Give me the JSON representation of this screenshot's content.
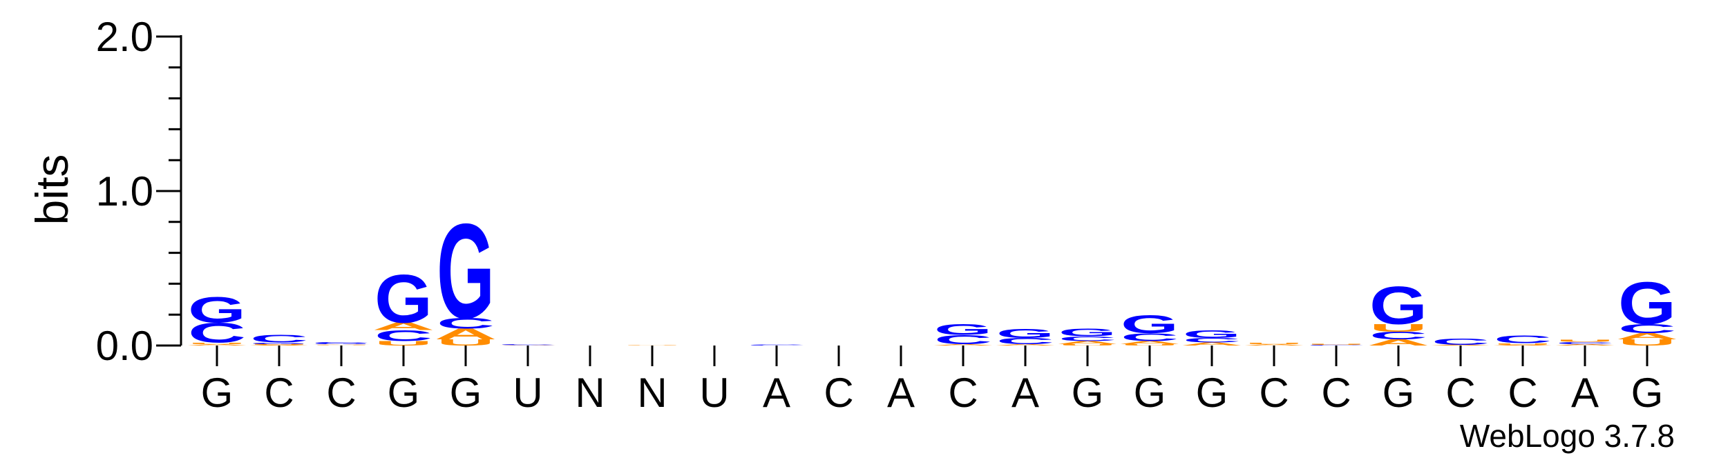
{
  "chart_data": {
    "type": "sequence-logo",
    "ylabel": "bits",
    "ylim": [
      0,
      2.0
    ],
    "yticks": [
      {
        "value": 2.0,
        "label": "2.0"
      },
      {
        "value": 1.0,
        "label": "1.0"
      },
      {
        "value": 0.0,
        "label": "0.0"
      }
    ],
    "y_minor_step": 0.2,
    "x_labels": [
      "G",
      "C",
      "C",
      "G",
      "G",
      "U",
      "N",
      "N",
      "U",
      "A",
      "C",
      "A",
      "C",
      "A",
      "G",
      "G",
      "G",
      "C",
      "C",
      "G",
      "C",
      "C",
      "A",
      "G"
    ],
    "positions": [
      {
        "stack": [
          {
            "letter": "A",
            "bits": 0.01
          },
          {
            "letter": "U",
            "bits": 0.01
          },
          {
            "letter": "C",
            "bits": 0.13
          },
          {
            "letter": "G",
            "bits": 0.17
          }
        ]
      },
      {
        "stack": [
          {
            "letter": "A",
            "bits": 0.005
          },
          {
            "letter": "U",
            "bits": 0.005
          },
          {
            "letter": "G",
            "bits": 0.01
          },
          {
            "letter": "C",
            "bits": 0.05
          }
        ]
      },
      {
        "stack": [
          {
            "letter": "U",
            "bits": 0.004
          },
          {
            "letter": "A",
            "bits": 0.004
          },
          {
            "letter": "G",
            "bits": 0.006
          },
          {
            "letter": "C",
            "bits": 0.01
          }
        ]
      },
      {
        "stack": [
          {
            "letter": "U",
            "bits": 0.03
          },
          {
            "letter": "C",
            "bits": 0.07
          },
          {
            "letter": "A",
            "bits": 0.05
          },
          {
            "letter": "G",
            "bits": 0.32
          }
        ]
      },
      {
        "stack": [
          {
            "letter": "U",
            "bits": 0.04
          },
          {
            "letter": "A",
            "bits": 0.07
          },
          {
            "letter": "C",
            "bits": 0.07
          },
          {
            "letter": "G",
            "bits": 0.63
          }
        ]
      },
      {
        "stack": [
          {
            "letter": "A",
            "bits": 0.003
          },
          {
            "letter": "C",
            "bits": 0.005
          }
        ]
      },
      {
        "stack": []
      },
      {
        "stack": [
          {
            "letter": "U",
            "bits": 0.004
          }
        ]
      },
      {
        "stack": []
      },
      {
        "stack": [
          {
            "letter": "C",
            "bits": 0.005
          }
        ]
      },
      {
        "stack": []
      },
      {
        "stack": []
      },
      {
        "stack": [
          {
            "letter": "A",
            "bits": 0.01
          },
          {
            "letter": "C",
            "bits": 0.06
          },
          {
            "letter": "G",
            "bits": 0.07
          }
        ]
      },
      {
        "stack": [
          {
            "letter": "A",
            "bits": 0.01
          },
          {
            "letter": "C",
            "bits": 0.04
          },
          {
            "letter": "G",
            "bits": 0.06
          }
        ]
      },
      {
        "stack": [
          {
            "letter": "U",
            "bits": 0.01
          },
          {
            "letter": "A",
            "bits": 0.02
          },
          {
            "letter": "C",
            "bits": 0.03
          },
          {
            "letter": "G",
            "bits": 0.05
          }
        ]
      },
      {
        "stack": [
          {
            "letter": "U",
            "bits": 0.01
          },
          {
            "letter": "A",
            "bits": 0.02
          },
          {
            "letter": "C",
            "bits": 0.05
          },
          {
            "letter": "G",
            "bits": 0.12
          }
        ]
      },
      {
        "stack": [
          {
            "letter": "A",
            "bits": 0.02
          },
          {
            "letter": "C",
            "bits": 0.03
          },
          {
            "letter": "G",
            "bits": 0.05
          }
        ]
      },
      {
        "stack": [
          {
            "letter": "A",
            "bits": 0.01
          },
          {
            "letter": "U",
            "bits": 0.01
          }
        ]
      },
      {
        "stack": [
          {
            "letter": "C",
            "bits": 0.005
          },
          {
            "letter": "U",
            "bits": 0.005
          }
        ]
      },
      {
        "stack": [
          {
            "letter": "A",
            "bits": 0.04
          },
          {
            "letter": "C",
            "bits": 0.05
          },
          {
            "letter": "U",
            "bits": 0.05
          },
          {
            "letter": "G",
            "bits": 0.25
          }
        ]
      },
      {
        "stack": [
          {
            "letter": "A",
            "bits": 0.005
          },
          {
            "letter": "C",
            "bits": 0.04
          }
        ]
      },
      {
        "stack": [
          {
            "letter": "A",
            "bits": 0.005
          },
          {
            "letter": "U",
            "bits": 0.01
          },
          {
            "letter": "C",
            "bits": 0.05
          }
        ]
      },
      {
        "stack": [
          {
            "letter": "A",
            "bits": 0.01
          },
          {
            "letter": "C",
            "bits": 0.015
          },
          {
            "letter": "U",
            "bits": 0.015
          }
        ]
      },
      {
        "stack": [
          {
            "letter": "U",
            "bits": 0.04
          },
          {
            "letter": "A",
            "bits": 0.04
          },
          {
            "letter": "C",
            "bits": 0.06
          },
          {
            "letter": "G",
            "bits": 0.28
          }
        ]
      }
    ],
    "colors": {
      "G": "#0000ff",
      "C": "#0000ff",
      "A": "#ff8c00",
      "U": "#ff8c00"
    },
    "grid": false
  },
  "credit": "WebLogo 3.7.8"
}
